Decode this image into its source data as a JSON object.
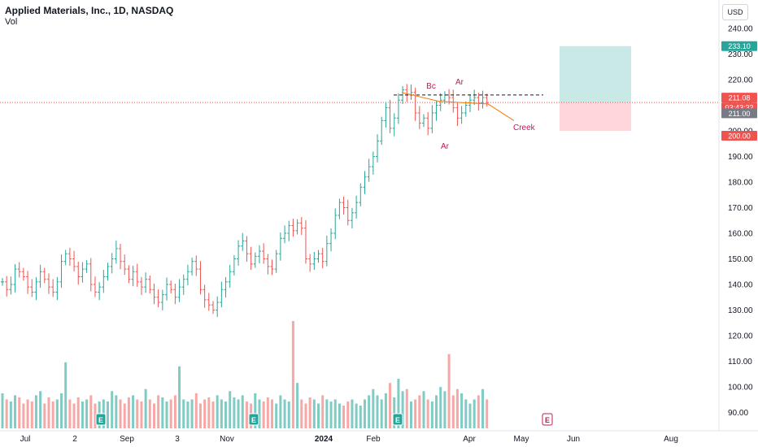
{
  "header": {
    "title": "Applied Materials, Inc., 1D, NASDAQ",
    "volume_label": "Vol",
    "currency": "USD"
  },
  "colors": {
    "up": "#26a69a",
    "down": "#ef5350",
    "vol_up": "#80cbc4",
    "vol_down": "#f7a8a6",
    "annotation": "#c2185b",
    "creek": "#f57c00",
    "target_zone": "#b2dfdb",
    "stop_zone": "#ffcdd2"
  },
  "chart_data": {
    "type": "candlestick",
    "symbol": "AMAT",
    "timeframe": "1D",
    "exchange": "NASDAQ",
    "x_tick_labels": [
      "Jul",
      "2",
      "Sep",
      "3",
      "Nov",
      "2024",
      "Feb",
      "Apr",
      "May",
      "Jun",
      "Aug"
    ],
    "y_axis": {
      "ticks": [
        90,
        100,
        110,
        120,
        130,
        140,
        150,
        160,
        170,
        180,
        190,
        200,
        210,
        220,
        230,
        240
      ],
      "range": [
        87,
        243
      ]
    },
    "close_series": [
      141,
      138,
      140,
      146,
      145,
      143,
      139,
      137,
      141,
      145,
      142,
      139,
      137,
      141,
      149,
      152,
      150,
      147,
      143,
      146,
      148,
      140,
      137,
      139,
      143,
      147,
      150,
      154,
      149,
      146,
      142,
      145,
      141,
      139,
      142,
      138,
      135,
      133,
      136,
      140,
      138,
      135,
      139,
      142,
      145,
      149,
      146,
      138,
      134,
      132,
      130,
      133,
      138,
      141,
      145,
      150,
      155,
      157,
      152,
      148,
      151,
      153,
      150,
      147,
      146,
      152,
      158,
      160,
      163,
      161,
      164,
      162,
      150,
      148,
      150,
      152,
      149,
      156,
      160,
      167,
      172,
      170,
      165,
      168,
      172,
      178,
      182,
      186,
      190,
      196,
      204,
      209,
      201,
      205,
      212,
      216,
      214,
      215,
      207,
      203,
      205,
      201,
      207,
      210,
      212,
      214,
      213,
      209,
      205,
      207,
      210,
      212,
      213,
      211,
      213,
      211
    ],
    "volume_series": [
      8.5,
      7.0,
      6.5,
      8.0,
      7.5,
      6.0,
      7.0,
      6.5,
      8.0,
      9.0,
      6.0,
      7.5,
      6.5,
      7.0,
      8.5,
      16.0,
      7.0,
      6.0,
      7.5,
      6.5,
      7.0,
      8.0,
      6.0,
      6.5,
      7.0,
      6.5,
      9.0,
      8.0,
      7.0,
      6.0,
      7.5,
      8.0,
      7.0,
      6.5,
      9.5,
      7.0,
      6.0,
      8.0,
      7.5,
      6.5,
      7.0,
      8.0,
      15.0,
      7.0,
      6.5,
      7.0,
      8.5,
      6.0,
      7.0,
      7.5,
      6.5,
      8.0,
      7.0,
      6.5,
      9.0,
      7.5,
      7.0,
      8.0,
      6.5,
      6.0,
      8.5,
      7.0,
      6.5,
      7.5,
      7.0,
      6.0,
      8.0,
      7.0,
      6.5,
      26.0,
      11.0,
      7.0,
      6.0,
      7.5,
      7.0,
      6.0,
      8.0,
      7.0,
      6.5,
      7.0,
      6.0,
      5.5,
      6.5,
      7.0,
      6.0,
      5.5,
      7.0,
      8.0,
      9.5,
      8.0,
      7.0,
      8.5,
      11.0,
      7.5,
      12.0,
      9.0,
      9.5,
      6.5,
      7.0,
      8.0,
      9.0,
      7.0,
      6.5,
      8.0,
      10.0,
      9.0,
      18.0,
      8.0,
      9.5,
      8.5,
      7.0,
      6.0,
      7.0,
      8.0,
      9.5,
      7.0
    ],
    "annotations": [
      {
        "text": "Bc",
        "price": 216
      },
      {
        "text": "Ar",
        "price": 217
      },
      {
        "text": "Ar",
        "price": 198
      },
      {
        "text": "Creek",
        "price": 206
      }
    ],
    "resistance_level": 214,
    "position_tool": {
      "entry": 211.0,
      "target": 233.1,
      "stop": 200.0
    },
    "price_badges": [
      {
        "text": "233.10",
        "kind": "target"
      },
      {
        "text": "211.08",
        "kind": "last"
      },
      {
        "text": "03:43:32",
        "kind": "timer"
      },
      {
        "text": "211.00",
        "kind": "entry"
      },
      {
        "text": "200.00",
        "kind": "stop"
      }
    ],
    "earnings_markers": [
      "E",
      "E",
      "E",
      "E"
    ]
  }
}
